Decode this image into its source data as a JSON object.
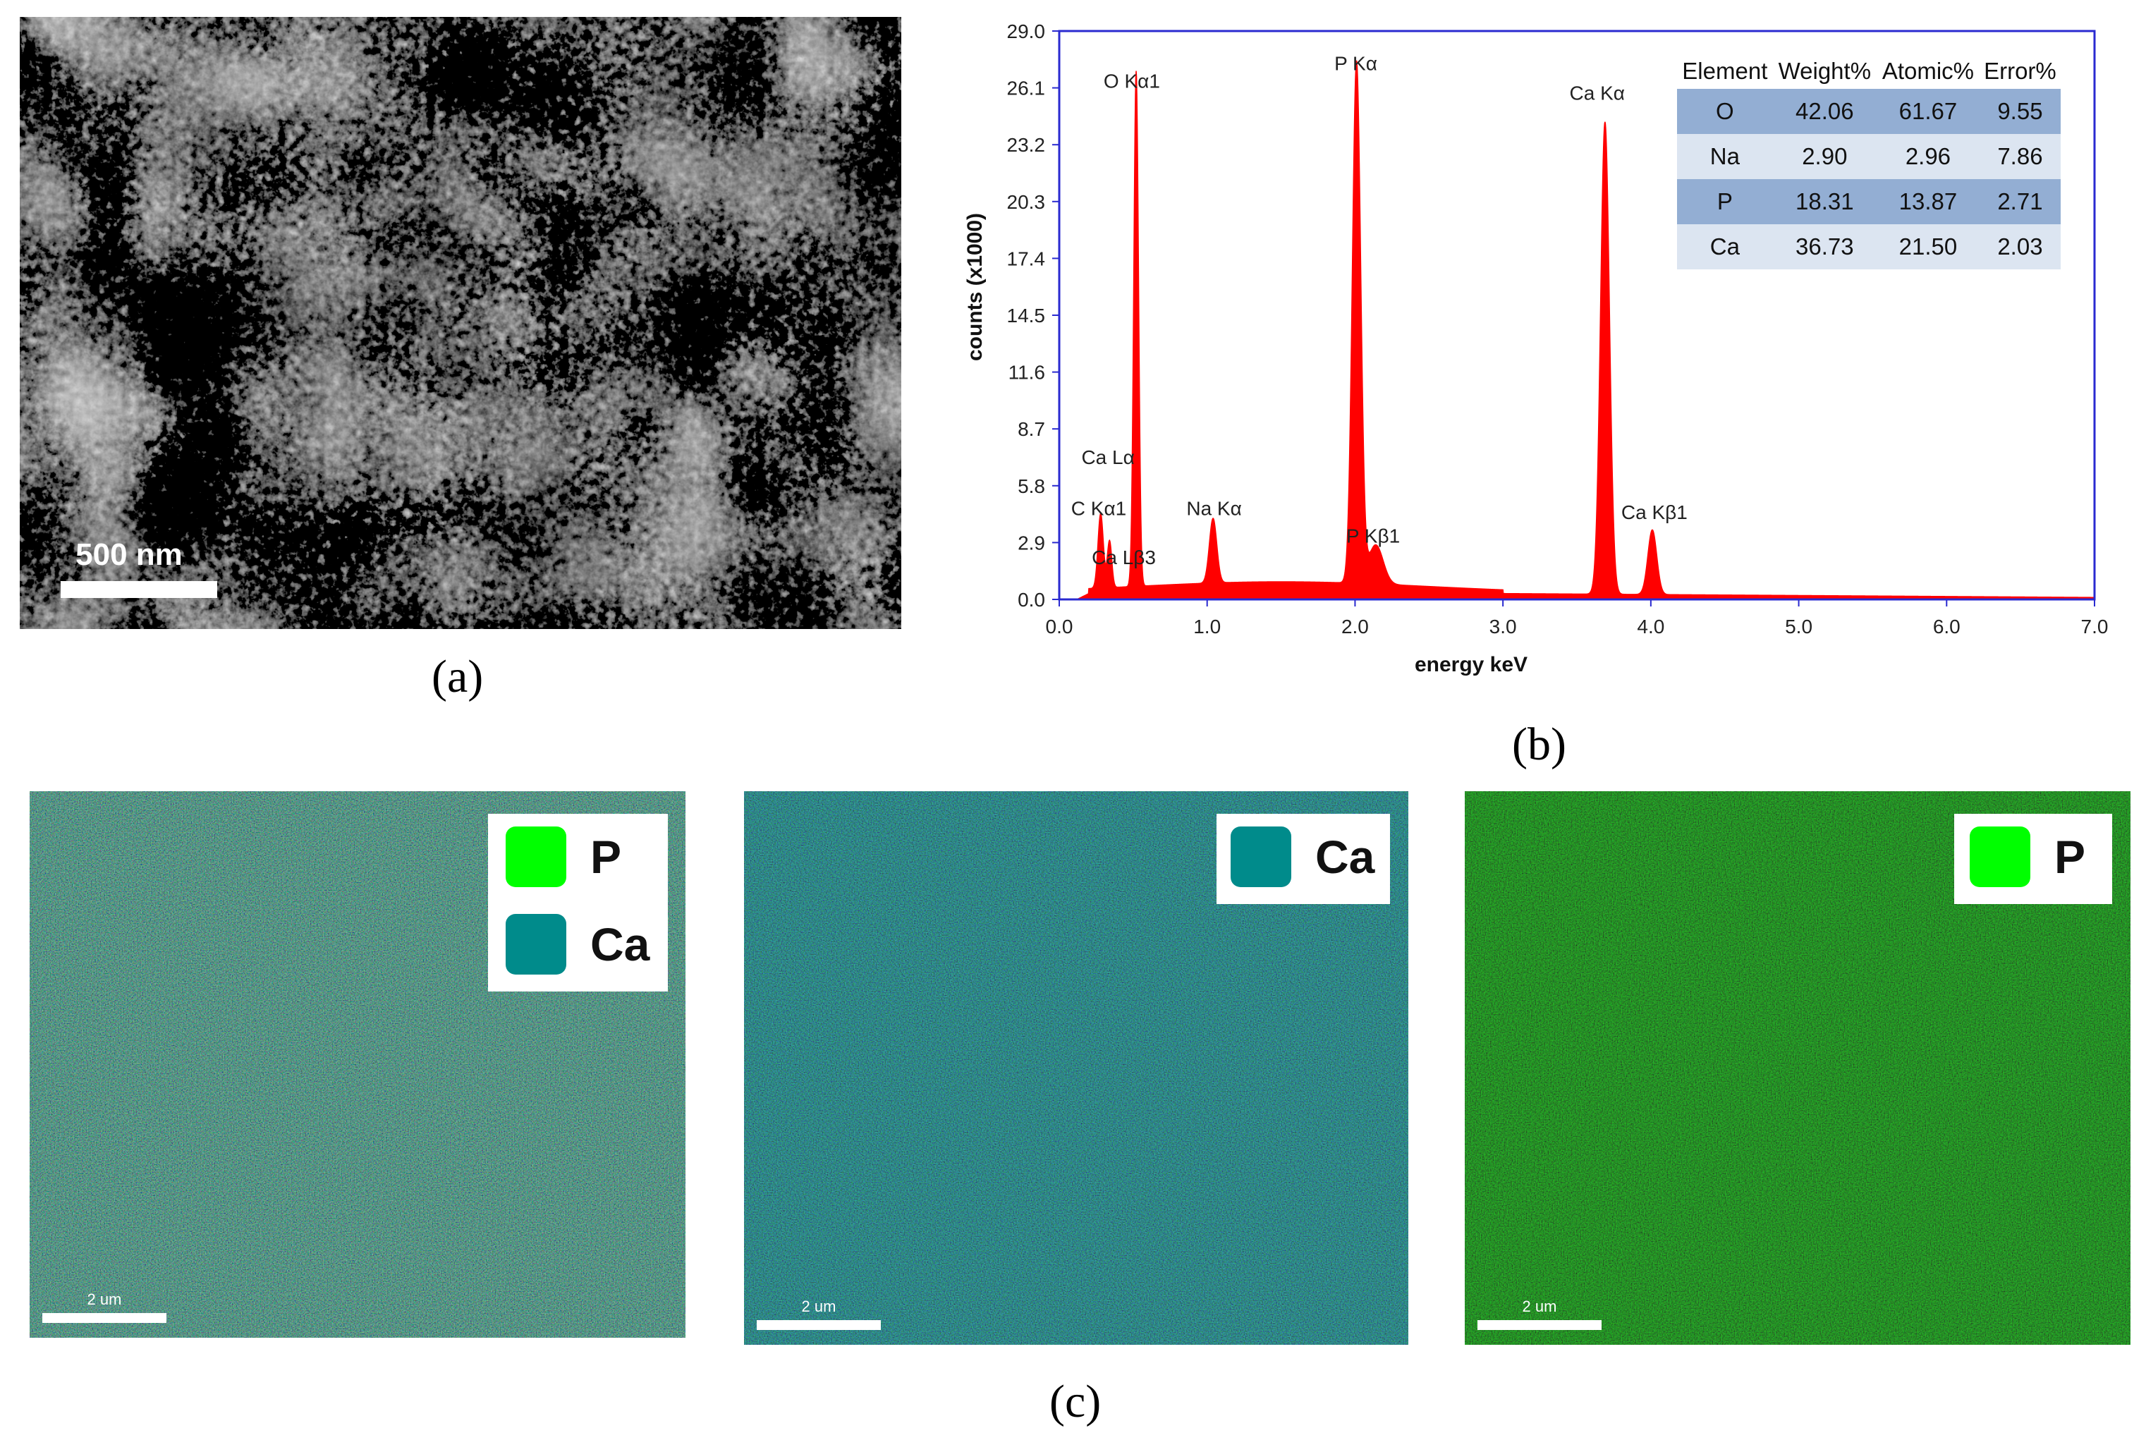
{
  "panel_labels": {
    "a": "(a)",
    "b": "(b)",
    "c": "(c)"
  },
  "sem": {
    "scale_label": "500 nm"
  },
  "chart_data": {
    "type": "area",
    "xlabel": "energy keV",
    "ylabel": "counts (x1000)",
    "xlim": [
      0.0,
      7.0
    ],
    "ylim": [
      0.0,
      29.0
    ],
    "x_ticks": [
      "0.0",
      "1.0",
      "2.0",
      "3.0",
      "4.0",
      "5.0",
      "6.0",
      "7.0"
    ],
    "y_ticks": [
      "0.0",
      "2.9",
      "5.8",
      "8.7",
      "11.6",
      "14.5",
      "17.4",
      "20.3",
      "23.2",
      "26.1",
      "29.0"
    ],
    "color": "#ff0000",
    "peaks": [
      {
        "x": 0.28,
        "y": 3.8
      },
      {
        "x": 0.34,
        "y": 2.4
      },
      {
        "x": 0.52,
        "y": 26.3
      },
      {
        "x": 1.04,
        "y": 3.3
      },
      {
        "x": 2.01,
        "y": 26.6
      },
      {
        "x": 2.14,
        "y": 2.0
      },
      {
        "x": 3.69,
        "y": 24.1
      },
      {
        "x": 4.01,
        "y": 3.3
      }
    ],
    "annotations": [
      {
        "text": "O  Kα1",
        "x": 0.3,
        "y": 26.1
      },
      {
        "text": "P  Kα",
        "x": 1.86,
        "y": 27.0
      },
      {
        "text": "Ca Kα",
        "x": 3.45,
        "y": 25.5
      },
      {
        "text": "Ca Lα",
        "x": 0.15,
        "y": 6.9
      },
      {
        "text": "C  Kα1",
        "x": 0.08,
        "y": 4.3
      },
      {
        "text": "Ca Lβ3",
        "x": 0.22,
        "y": 1.8
      },
      {
        "text": "Na Kα",
        "x": 0.86,
        "y": 4.3
      },
      {
        "text": "P  Kβ1",
        "x": 1.94,
        "y": 2.9
      },
      {
        "text": "Ca Kβ1",
        "x": 3.8,
        "y": 4.1
      }
    ]
  },
  "eds_table": {
    "headers": [
      "Element",
      "Weight%",
      "Atomic%",
      "Error%"
    ],
    "rows": [
      [
        "O",
        "42.06",
        "61.67",
        "9.55"
      ],
      [
        "Na",
        "2.90",
        "2.96",
        "7.86"
      ],
      [
        "P",
        "18.31",
        "13.87",
        "2.71"
      ],
      [
        "Ca",
        "36.73",
        "21.50",
        "2.03"
      ]
    ]
  },
  "maps": [
    {
      "legend": [
        {
          "label": "P",
          "color": "#00ff00"
        },
        {
          "label": "Ca",
          "color": "#008b8b"
        }
      ],
      "scale_label": "2 um"
    },
    {
      "legend": [
        {
          "label": "Ca",
          "color": "#008b8b"
        }
      ],
      "scale_label": "2 um"
    },
    {
      "legend": [
        {
          "label": "P",
          "color": "#00ff00"
        }
      ],
      "scale_label": "2 um"
    }
  ]
}
